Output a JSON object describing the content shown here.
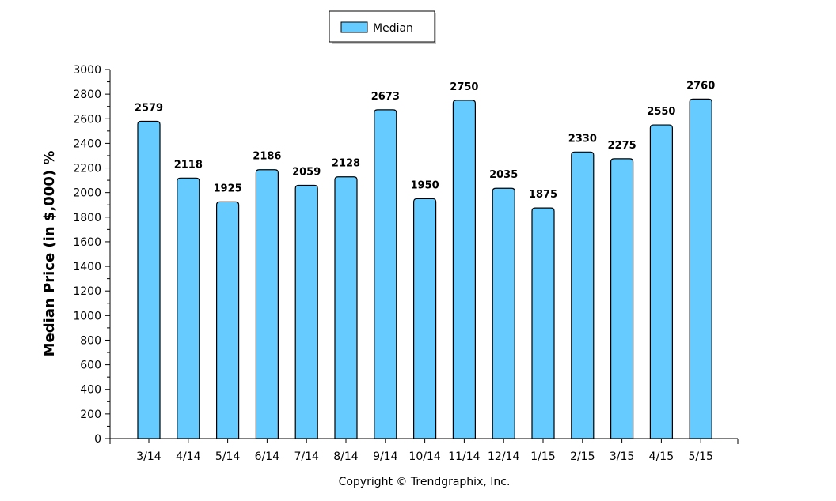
{
  "chart_data": {
    "type": "bar",
    "categories": [
      "3/14",
      "4/14",
      "5/14",
      "6/14",
      "7/14",
      "8/14",
      "9/14",
      "10/14",
      "11/14",
      "12/14",
      "1/15",
      "2/15",
      "3/15",
      "4/15",
      "5/15"
    ],
    "series": [
      {
        "name": "Median",
        "values": [
          2579,
          2118,
          1925,
          2186,
          2059,
          2128,
          2673,
          1950,
          2750,
          2035,
          1875,
          2330,
          2275,
          2550,
          2760
        ],
        "color": "#66ccff"
      }
    ],
    "ylabel": "Median Price (in $,000) %",
    "xlabel": "",
    "ylim": [
      0,
      3000
    ],
    "yticks": [
      0,
      200,
      400,
      600,
      800,
      1000,
      1200,
      1400,
      1600,
      1800,
      2000,
      2200,
      2400,
      2600,
      2800,
      3000
    ],
    "legend": {
      "position": "top-center",
      "entries": [
        "Median"
      ]
    },
    "grid": false,
    "data_labels": true
  },
  "copyright": "Copyright © Trendgraphix, Inc.",
  "colors": {
    "bar_fill": "#66ccff",
    "bar_stroke": "#000000",
    "axis": "#000000"
  }
}
